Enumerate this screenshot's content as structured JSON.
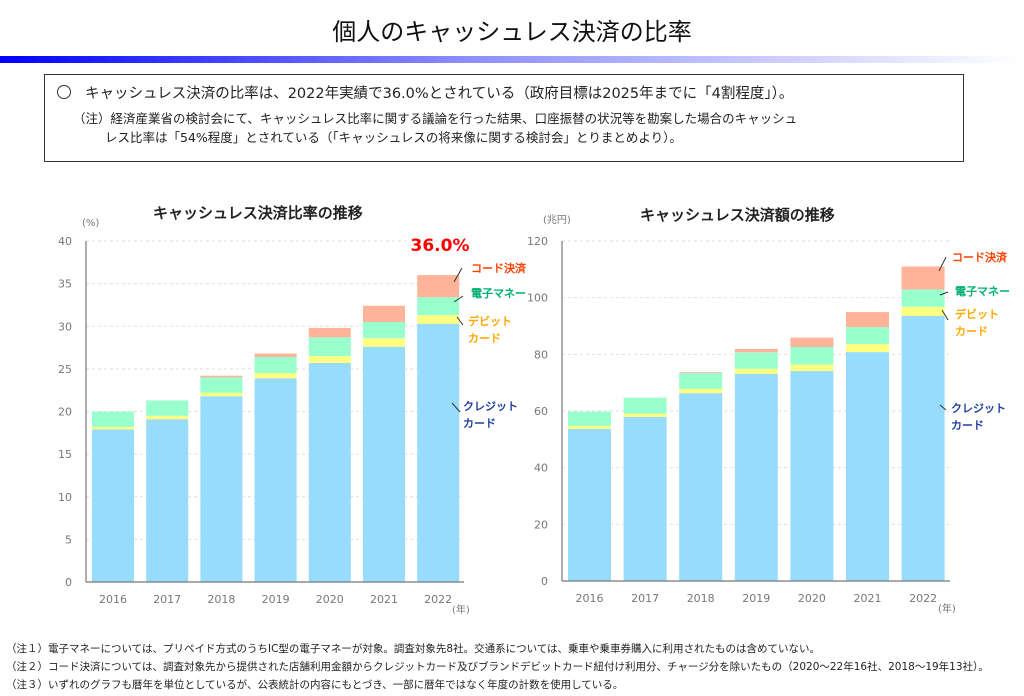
{
  "header": {
    "title": "個人のキャッシュレス決済の比率"
  },
  "summary": {
    "bullet_icon": "circle-bullet",
    "main": "キャッシュレス決済の比率は、2022年実績で36.0%とされている（政府目標は2025年までに「4割程度」）。",
    "note_line1": "（注）経済産業省の検討会にて、キャッシュレス比率に関する議論を行った結果、口座振替の状況等を勘案した場合のキャッシュ",
    "note_line2": "レス比率は「54%程度」とされている（「キャッシュレスの将来像に関する検討会」とりまとめより）。"
  },
  "colors": {
    "credit": "#97dbfd",
    "debit": "#ffff80",
    "emoney": "#99ffcc",
    "code": "#ffb399",
    "highlight": "#ff0000"
  },
  "chart_data": [
    {
      "type": "bar",
      "stacked": true,
      "title": "キャッシュレス決済比率の推移",
      "ylabel": "(%)",
      "xlabel": "(年)",
      "ylim": [
        0,
        40
      ],
      "yticks": [
        0,
        5,
        10,
        15,
        20,
        25,
        30,
        35,
        40
      ],
      "grid": true,
      "annotation": "36.0%",
      "categories": [
        "2016",
        "2017",
        "2018",
        "2019",
        "2020",
        "2021",
        "2022"
      ],
      "series": [
        {
          "name": "クレジットカード",
          "label_lines": [
            "クレジット",
            "カード"
          ],
          "label_color": "#1f3f9f",
          "color_key": "credit",
          "values": [
            17.9,
            19.1,
            21.8,
            23.9,
            25.7,
            27.6,
            30.3
          ]
        },
        {
          "name": "デビットカード",
          "label_lines": [
            "デビット",
            "カード"
          ],
          "label_color": "#ffa500",
          "color_key": "debit",
          "values": [
            0.3,
            0.4,
            0.4,
            0.6,
            0.8,
            1.0,
            1.0
          ]
        },
        {
          "name": "電子マネー",
          "label_lines": [
            "電子マネー"
          ],
          "label_color": "#00b070",
          "color_key": "emoney",
          "values": [
            1.8,
            1.8,
            1.8,
            1.9,
            2.2,
            1.9,
            2.1
          ]
        },
        {
          "name": "コード決済",
          "label_lines": [
            "コード決済"
          ],
          "label_color": "#ff4000",
          "color_key": "code",
          "values": [
            0,
            0,
            0.2,
            0.4,
            1.1,
            1.9,
            2.6
          ]
        }
      ]
    },
    {
      "type": "bar",
      "stacked": true,
      "title": "キャッシュレス決済額の推移",
      "ylabel": "(兆円)",
      "xlabel": "(年)",
      "ylim": [
        0,
        120
      ],
      "yticks": [
        0,
        20,
        40,
        60,
        80,
        100,
        120
      ],
      "grid": true,
      "categories": [
        "2016",
        "2017",
        "2018",
        "2019",
        "2020",
        "2021",
        "2022"
      ],
      "series": [
        {
          "name": "クレジットカード",
          "label_lines": [
            "クレジット",
            "カード"
          ],
          "label_color": "#1f3f9f",
          "color_key": "credit",
          "values": [
            53.7,
            57.9,
            66.3,
            73.1,
            74.1,
            80.8,
            93.6
          ]
        },
        {
          "name": "デビットカード",
          "label_lines": [
            "デビット",
            "カード"
          ],
          "label_color": "#ffa500",
          "color_key": "debit",
          "values": [
            1.1,
            1.2,
            1.5,
            1.8,
            2.3,
            2.8,
            3.2
          ]
        },
        {
          "name": "電子マネー",
          "label_lines": [
            "電子マネー"
          ],
          "label_color": "#00b070",
          "color_key": "emoney",
          "values": [
            5.0,
            5.6,
            5.6,
            5.8,
            6.2,
            6.0,
            6.1
          ]
        },
        {
          "name": "コード決済",
          "label_lines": [
            "コード決済"
          ],
          "label_color": "#ff4000",
          "color_key": "code",
          "values": [
            0,
            0,
            0.3,
            1.2,
            3.3,
            5.3,
            8.1
          ]
        }
      ]
    }
  ],
  "footnotes": [
    "（注１）電子マネーについては、プリペイド方式のうちIC型の電子マネーが対象。調査対象先8社。交通系については、乗車や乗車券購入に利用されたものは含めていない。",
    "（注２）コード決済については、調査対象先から提供された店舗利用金額からクレジットカード及びブランドデビットカード紐付け利用分、チャージ分を除いたもの（2020～22年16社、2018～19年13社）。",
    "（注３）いずれのグラフも暦年を単位としているが、公表統計の内容にもとづき、一部に暦年ではなく年度の計数を使用している。"
  ]
}
